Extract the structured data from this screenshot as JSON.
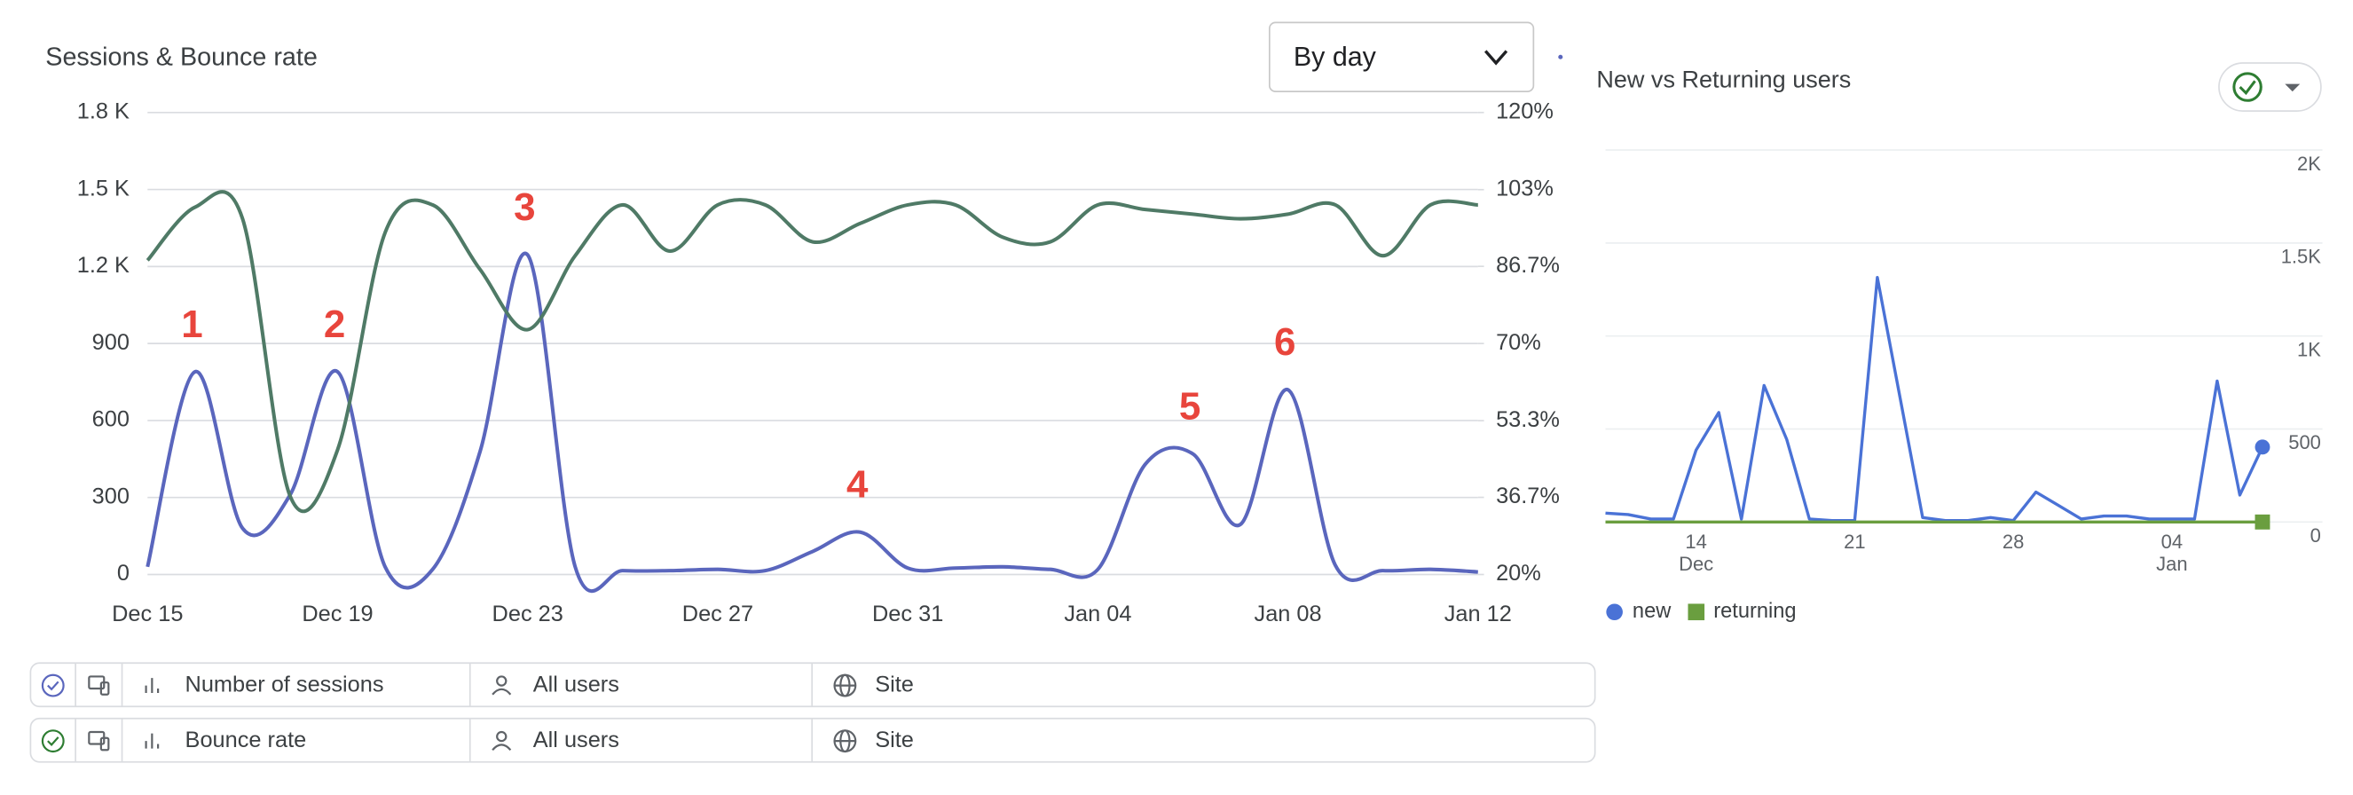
{
  "chart_data": [
    {
      "type": "line",
      "title": "Sessions & Bounce rate",
      "categories": [
        "Dec 15",
        null,
        null,
        null,
        "Dec 19",
        null,
        null,
        null,
        "Dec 23",
        null,
        null,
        null,
        "Dec 27",
        null,
        null,
        null,
        "Dec 31",
        null,
        null,
        null,
        "Jan 04",
        null,
        null,
        null,
        "Jan 08",
        null,
        null,
        null,
        "Jan 12"
      ],
      "series": [
        {
          "name": "Number of sessions",
          "color": "#5a66bd",
          "values": [
            30,
            790,
            180,
            310,
            790,
            30,
            20,
            480,
            1245,
            30,
            15,
            15,
            20,
            15,
            90,
            165,
            25,
            25,
            30,
            20,
            20,
            430,
            470,
            195,
            720,
            35,
            15,
            20,
            10
          ]
        },
        {
          "name": "Bounce rate",
          "color": "#4f7a66",
          "axis": "y2",
          "values": [
            88,
            99.5,
            97,
            37,
            47,
            94,
            100,
            86,
            73,
            89,
            100,
            90,
            100,
            100,
            92,
            96,
            100,
            100,
            93,
            92,
            100,
            99,
            98,
            97,
            98,
            100,
            89,
            100,
            100
          ]
        }
      ],
      "ylim": [
        0,
        1800
      ],
      "yticks": [
        0,
        300,
        600,
        900,
        {
          "value": 1200,
          "label": "1.2 K"
        },
        {
          "value": 1500,
          "label": "1.5 K"
        },
        {
          "value": 1800,
          "label": "1.8 K"
        }
      ],
      "y2lim": [
        20,
        120
      ],
      "y2ticks": [
        {
          "value": 20,
          "label": "20%"
        },
        {
          "value": 36.7,
          "label": "36.7%"
        },
        {
          "value": 53.3,
          "label": "53.3%"
        },
        {
          "value": 70,
          "label": "70%"
        },
        {
          "value": 86.7,
          "label": "86.7%"
        },
        {
          "value": 103.3,
          "label": "103%"
        },
        {
          "value": 120,
          "label": "120%"
        }
      ],
      "grid": true,
      "annotations": [
        "1",
        "2",
        "3",
        "4",
        "5",
        "6"
      ]
    },
    {
      "type": "line",
      "title": "New vs Returning users",
      "categories": [
        null,
        null,
        null,
        null,
        "14",
        null,
        null,
        null,
        null,
        null,
        null,
        "21",
        null,
        null,
        null,
        null,
        null,
        null,
        "28",
        null,
        null,
        null,
        null,
        null,
        null,
        "04",
        null,
        null,
        null,
        null
      ],
      "category_groups": [
        null,
        null,
        null,
        null,
        "Dec",
        null,
        null,
        null,
        null,
        null,
        null,
        null,
        null,
        null,
        null,
        null,
        null,
        null,
        null,
        null,
        null,
        null,
        null,
        null,
        null,
        "Jan",
        null,
        null,
        null,
        null
      ],
      "series": [
        {
          "name": "new",
          "color": "#4a72d6",
          "values": [
            48,
            40,
            16,
            16,
            387,
            589,
            16,
            734,
            444,
            16,
            8,
            8,
            1315,
            670,
            24,
            8,
            8,
            24,
            8,
            161,
            89,
            16,
            32,
            32,
            16,
            16,
            16,
            758,
            145,
            403
          ]
        },
        {
          "name": "returning",
          "color": "#6a9e3f",
          "values": [
            0,
            0,
            0,
            0,
            0,
            0,
            0,
            0,
            0,
            0,
            0,
            0,
            0,
            0,
            0,
            0,
            0,
            0,
            0,
            0,
            0,
            0,
            0,
            0,
            0,
            0,
            0,
            0,
            0,
            0
          ]
        }
      ],
      "ylim": [
        0,
        2000
      ],
      "yticks": [
        0,
        500,
        {
          "value": 1000,
          "label": "1K"
        },
        {
          "value": 1500,
          "label": "1.5K"
        },
        {
          "value": 2000,
          "label": "2K"
        }
      ],
      "grid": true
    }
  ],
  "controls": {
    "granularity": "By day"
  },
  "segments": [
    {
      "audience": "All users",
      "scope": "Site"
    },
    {
      "audience": "All users",
      "scope": "Site"
    }
  ]
}
